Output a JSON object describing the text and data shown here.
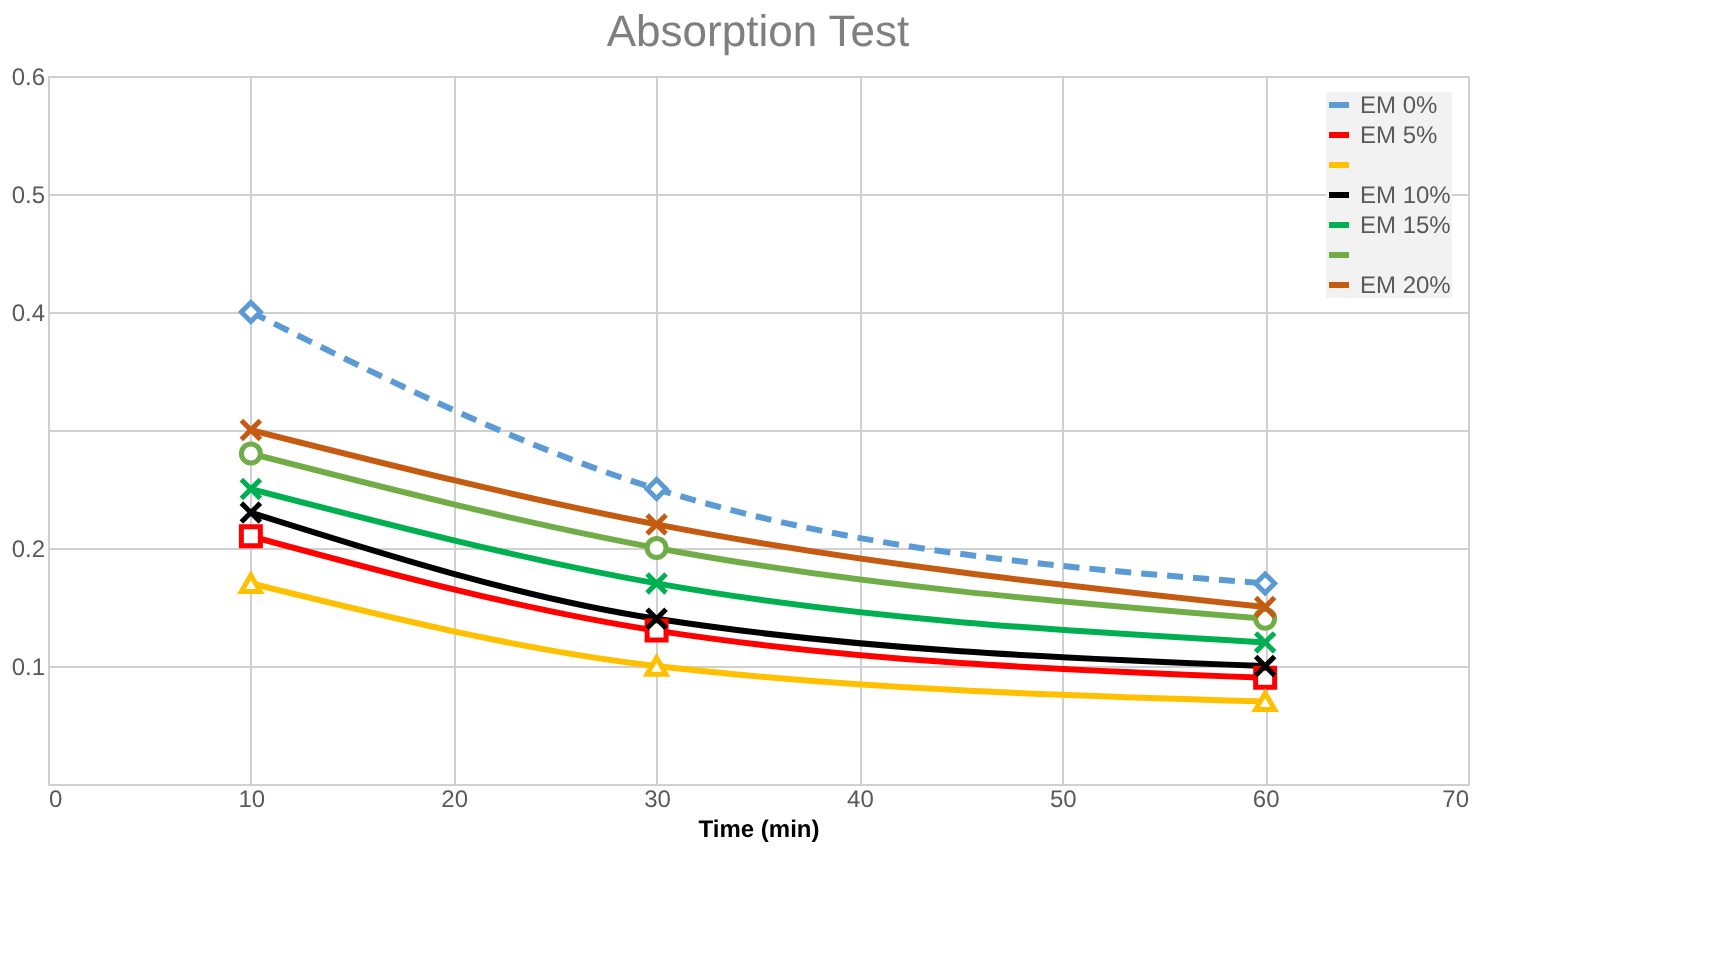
{
  "chart_data": {
    "type": "line",
    "title": "Absorption Test",
    "xlabel": "Time (min)",
    "x": [
      10,
      30,
      60
    ],
    "xlim": [
      0,
      70
    ],
    "xticks": [
      0,
      10,
      20,
      30,
      40,
      50,
      60,
      70
    ],
    "ylim": [
      0,
      0.6
    ],
    "yticks": [
      {
        "value": 0,
        "label": null
      },
      0.1,
      0.2,
      {
        "value": 0.3,
        "label": null
      },
      0.4,
      0.5,
      0.6
    ],
    "grid": true,
    "legend": "top right",
    "series": [
      {
        "name": "EM 0%",
        "color": "#5b9bd5",
        "marker": "diamond",
        "line_style": "dashed",
        "values": [
          0.4,
          0.25,
          0.17
        ]
      },
      {
        "name": "EM 5%",
        "color": "#ff0000",
        "marker": "square",
        "values": [
          0.21,
          0.13,
          0.09
        ]
      },
      {
        "color": "#ffc000",
        "marker": "triangle",
        "values": [
          0.17,
          0.1,
          0.07
        ]
      },
      {
        "name": "EM 10%",
        "color": "#000000",
        "marker": "cross",
        "values": [
          0.23,
          0.14,
          0.1
        ]
      },
      {
        "name": "EM 15%",
        "color": "#00b050",
        "marker": "cross",
        "values": [
          0.25,
          0.17,
          0.12
        ]
      },
      {
        "color": "#70ad47",
        "marker": "circle",
        "values": [
          0.28,
          0.2,
          0.14
        ]
      },
      {
        "name": "EM 20%",
        "color": "#c55a11",
        "marker": "cross",
        "values": [
          0.3,
          0.22,
          0.15
        ]
      }
    ]
  }
}
